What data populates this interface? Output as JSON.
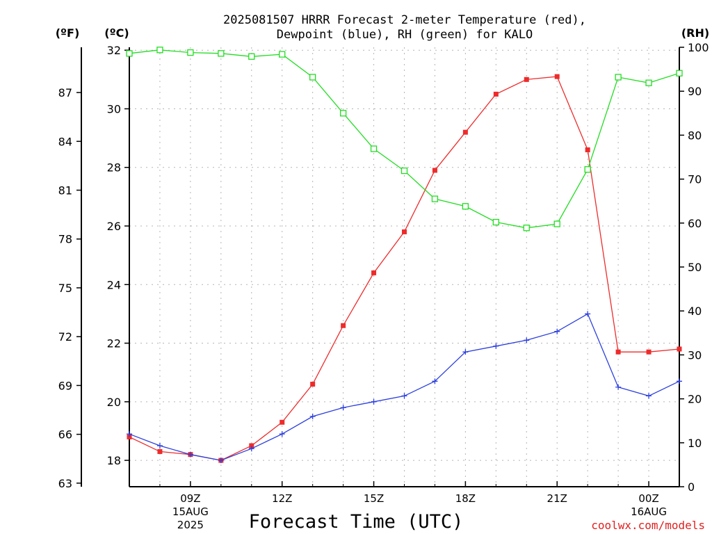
{
  "chart_data": {
    "type": "line",
    "title_line1": "2025081507 HRRR Forecast 2-meter Temperature (red),",
    "title_line2": "Dewpoint (blue), RH (green) for KALO",
    "xlabel": "Forecast Time (UTC)",
    "y_left_unit_f": "(ºF)",
    "y_left_unit_c": "(ºC)",
    "y_right_unit": "(RH)",
    "credit": "coolwx.com/models",
    "x": [
      7,
      8,
      9,
      10,
      11,
      12,
      13,
      14,
      15,
      16,
      17,
      18,
      19,
      20,
      21,
      22,
      23,
      24,
      25
    ],
    "xlim": [
      7,
      25
    ],
    "ylim_c": [
      17.1,
      32.1
    ],
    "ylim_rh": [
      0,
      100
    ],
    "x_ticks": [
      {
        "x": 9,
        "label": "09Z",
        "sub1": "15AUG",
        "sub2": "2025"
      },
      {
        "x": 12,
        "label": "12Z",
        "sub1": "",
        "sub2": ""
      },
      {
        "x": 15,
        "label": "15Z",
        "sub1": "",
        "sub2": ""
      },
      {
        "x": 18,
        "label": "18Z",
        "sub1": "",
        "sub2": ""
      },
      {
        "x": 21,
        "label": "21Z",
        "sub1": "",
        "sub2": ""
      },
      {
        "x": 24,
        "label": "00Z",
        "sub1": "16AUG",
        "sub2": ""
      }
    ],
    "yticks_c": [
      "18",
      "20",
      "22",
      "24",
      "26",
      "28",
      "30",
      "32"
    ],
    "yticks_f": [
      "63",
      "66",
      "69",
      "72",
      "75",
      "78",
      "81",
      "84",
      "87"
    ],
    "yticks_rh": [
      "0",
      "10",
      "20",
      "30",
      "40",
      "50",
      "60",
      "70",
      "80",
      "90",
      "100"
    ],
    "grid": true,
    "series": [
      {
        "name": "Temperature",
        "color": "#ee2b2b",
        "marker": "filled-square",
        "values": [
          18.8,
          18.3,
          18.2,
          18.0,
          18.5,
          19.3,
          20.6,
          22.6,
          24.4,
          25.8,
          27.9,
          29.2,
          30.5,
          31.0,
          31.1,
          28.6,
          21.7,
          21.7,
          21.8
        ]
      },
      {
        "name": "Dewpoint",
        "color": "#2b3fdd",
        "marker": "plus",
        "values": [
          18.9,
          18.5,
          18.2,
          18.0,
          18.4,
          18.9,
          19.5,
          19.8,
          20.0,
          20.2,
          20.7,
          21.7,
          21.9,
          22.1,
          22.4,
          23.0,
          20.5,
          20.2,
          20.7
        ]
      },
      {
        "name": "RH",
        "color": "#22dd22",
        "marker": "open-square",
        "values": [
          98.6,
          99.4,
          98.8,
          98.6,
          97.9,
          98.4,
          93.2,
          85.0,
          76.9,
          71.9,
          65.5,
          63.8,
          60.2,
          58.9,
          59.8,
          72.2,
          93.2,
          91.9,
          94.1
        ]
      }
    ]
  }
}
